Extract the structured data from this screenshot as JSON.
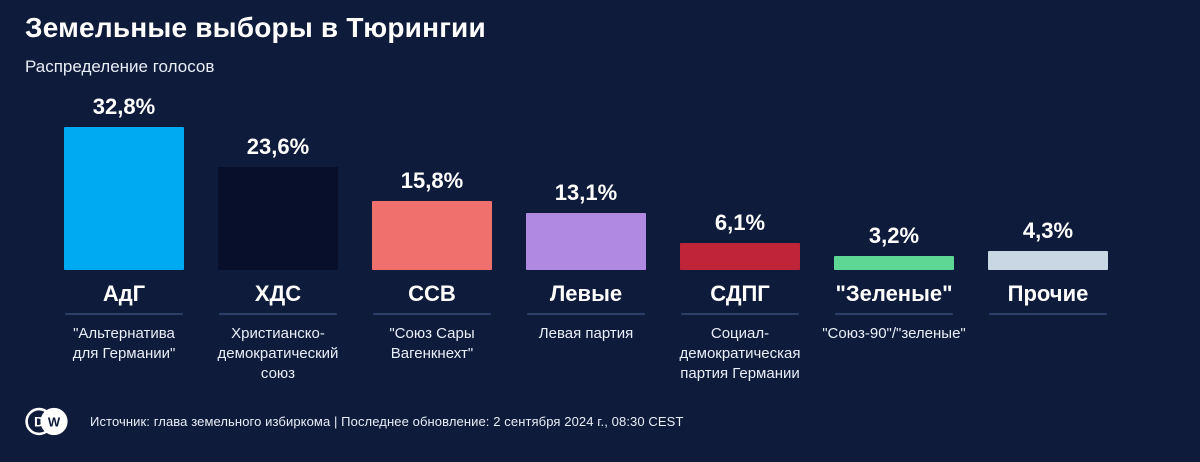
{
  "header": {
    "title": "Земельные выборы в Тюрингии",
    "subtitle": "Распределение голосов"
  },
  "chart_data": {
    "type": "bar",
    "title": "Земельные выборы в Тюрингии",
    "subtitle": "Распределение голосов",
    "xlabel": "",
    "ylabel": "",
    "unit": "%",
    "ylim": [
      0,
      32.8
    ],
    "grid": false,
    "legend": false,
    "decimal_separator": ",",
    "categories": [
      "АдГ",
      "ХДС",
      "ССВ",
      "Левые",
      "СДПГ",
      "\"Зеленые\"",
      "Прочие"
    ],
    "values": [
      32.8,
      23.6,
      15.8,
      13.1,
      6.1,
      3.2,
      4.3
    ],
    "bars": [
      {
        "party": "АдГ",
        "value": 32.8,
        "value_label": "32,8%",
        "color": "#00aaf2",
        "full_name_lines": [
          "\"Альтернатива",
          "для Германии\""
        ]
      },
      {
        "party": "ХДС",
        "value": 23.6,
        "value_label": "23,6%",
        "color": "#070f2b",
        "full_name_lines": [
          "Христианско-",
          "демократический",
          "союз"
        ]
      },
      {
        "party": "ССВ",
        "value": 15.8,
        "value_label": "15,8%",
        "color": "#f0706e",
        "full_name_lines": [
          "\"Союз Сары",
          "Вагенкнехт\""
        ]
      },
      {
        "party": "Левые",
        "value": 13.1,
        "value_label": "13,1%",
        "color": "#b08ae2",
        "full_name_lines": [
          "Левая партия"
        ]
      },
      {
        "party": "СДПГ",
        "value": 6.1,
        "value_label": "6,1%",
        "color": "#c02438",
        "full_name_lines": [
          "Социал-",
          "демократическая",
          "партия Германии"
        ]
      },
      {
        "party": "\"Зеленые\"",
        "value": 3.2,
        "value_label": "3,2%",
        "color": "#5ed794",
        "full_name_lines": [
          "\"Союз-90\"/\"зеленые\""
        ]
      },
      {
        "party": "Прочие",
        "value": 4.3,
        "value_label": "4,3%",
        "color": "#c9d6e4",
        "full_name_lines": []
      }
    ]
  },
  "footer": {
    "logo_letters": {
      "d": "D",
      "w": "W"
    },
    "source_text": "Источник: глава земельного избиркома | Последнее обновление: 2 сентября 2024 г., 08:30 CEST"
  },
  "colors": {
    "background": "#0e1b3a",
    "divider": "#2c3f68",
    "text_primary": "#ffffff",
    "text_secondary": "#e9eef7"
  }
}
